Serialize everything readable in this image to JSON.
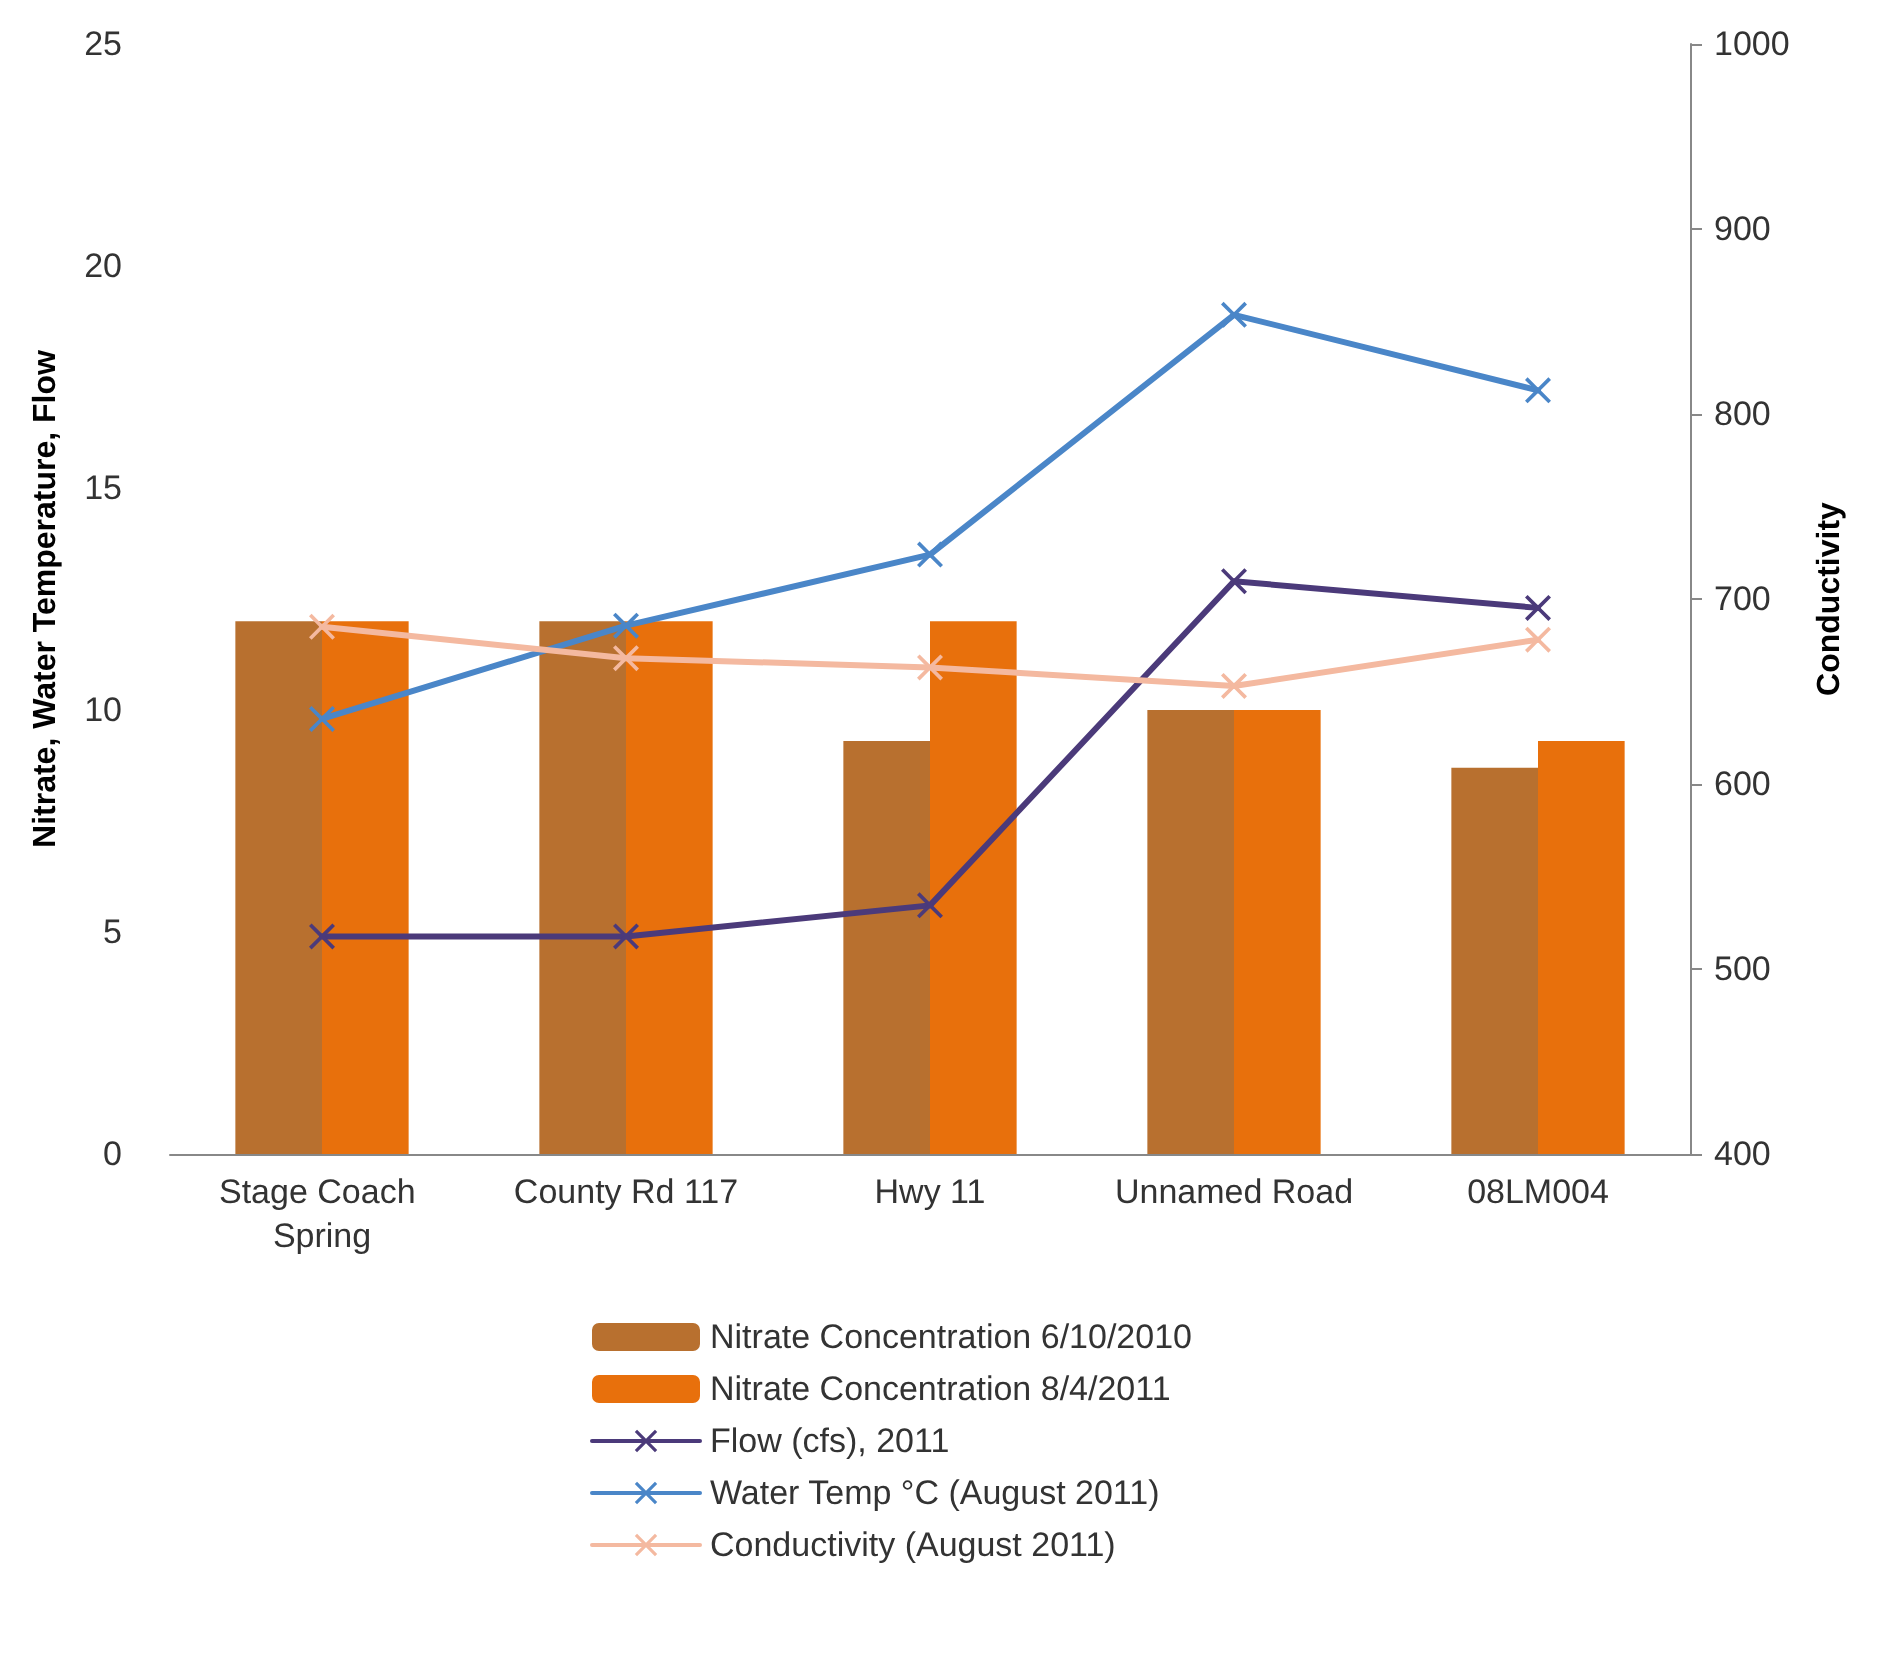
{
  "chart_data": {
    "type": "bar",
    "categories": [
      "Stage Coach Spring",
      "County Rd 117",
      "Hwy 11",
      "Unnamed Road",
      "08LM004"
    ],
    "ylabel": "Nitrate, Water Temperature, Flow",
    "y2label": "Conductivity",
    "ylim": [
      0,
      25
    ],
    "yticks": [
      0,
      5,
      10,
      15,
      20,
      25
    ],
    "y2lim": [
      400,
      1000
    ],
    "y2ticks": [
      400,
      500,
      600,
      700,
      800,
      900,
      1000
    ],
    "series": [
      {
        "name": "Nitrate Concentration 6/10/2010",
        "color": "#b8702f",
        "values": [
          12,
          12,
          9.3,
          10,
          8.7
        ]
      },
      {
        "name": "Nitrate Concentration 8/4/2011",
        "color": "#e8700c",
        "values": [
          12,
          12,
          12,
          10,
          9.3
        ]
      },
      {
        "name": "Flow (cfs), 2011",
        "type": "line",
        "color": "#4b3a7a",
        "values": [
          4.9,
          4.9,
          5.6,
          12.9,
          12.3
        ]
      },
      {
        "name": "Water Temp °C (August 2011)",
        "type": "line",
        "color": "#4a86c8",
        "values": [
          9.8,
          11.9,
          13.5,
          18.9,
          17.2
        ]
      },
      {
        "name": "Conductivity (August 2011)",
        "type": "line",
        "axis": "y2",
        "color": "#f4b9a0",
        "values": [
          685,
          668,
          663,
          653,
          678
        ]
      }
    ],
    "marker": "cross",
    "line_style": "solid",
    "grid": false,
    "legend": "bottom"
  }
}
